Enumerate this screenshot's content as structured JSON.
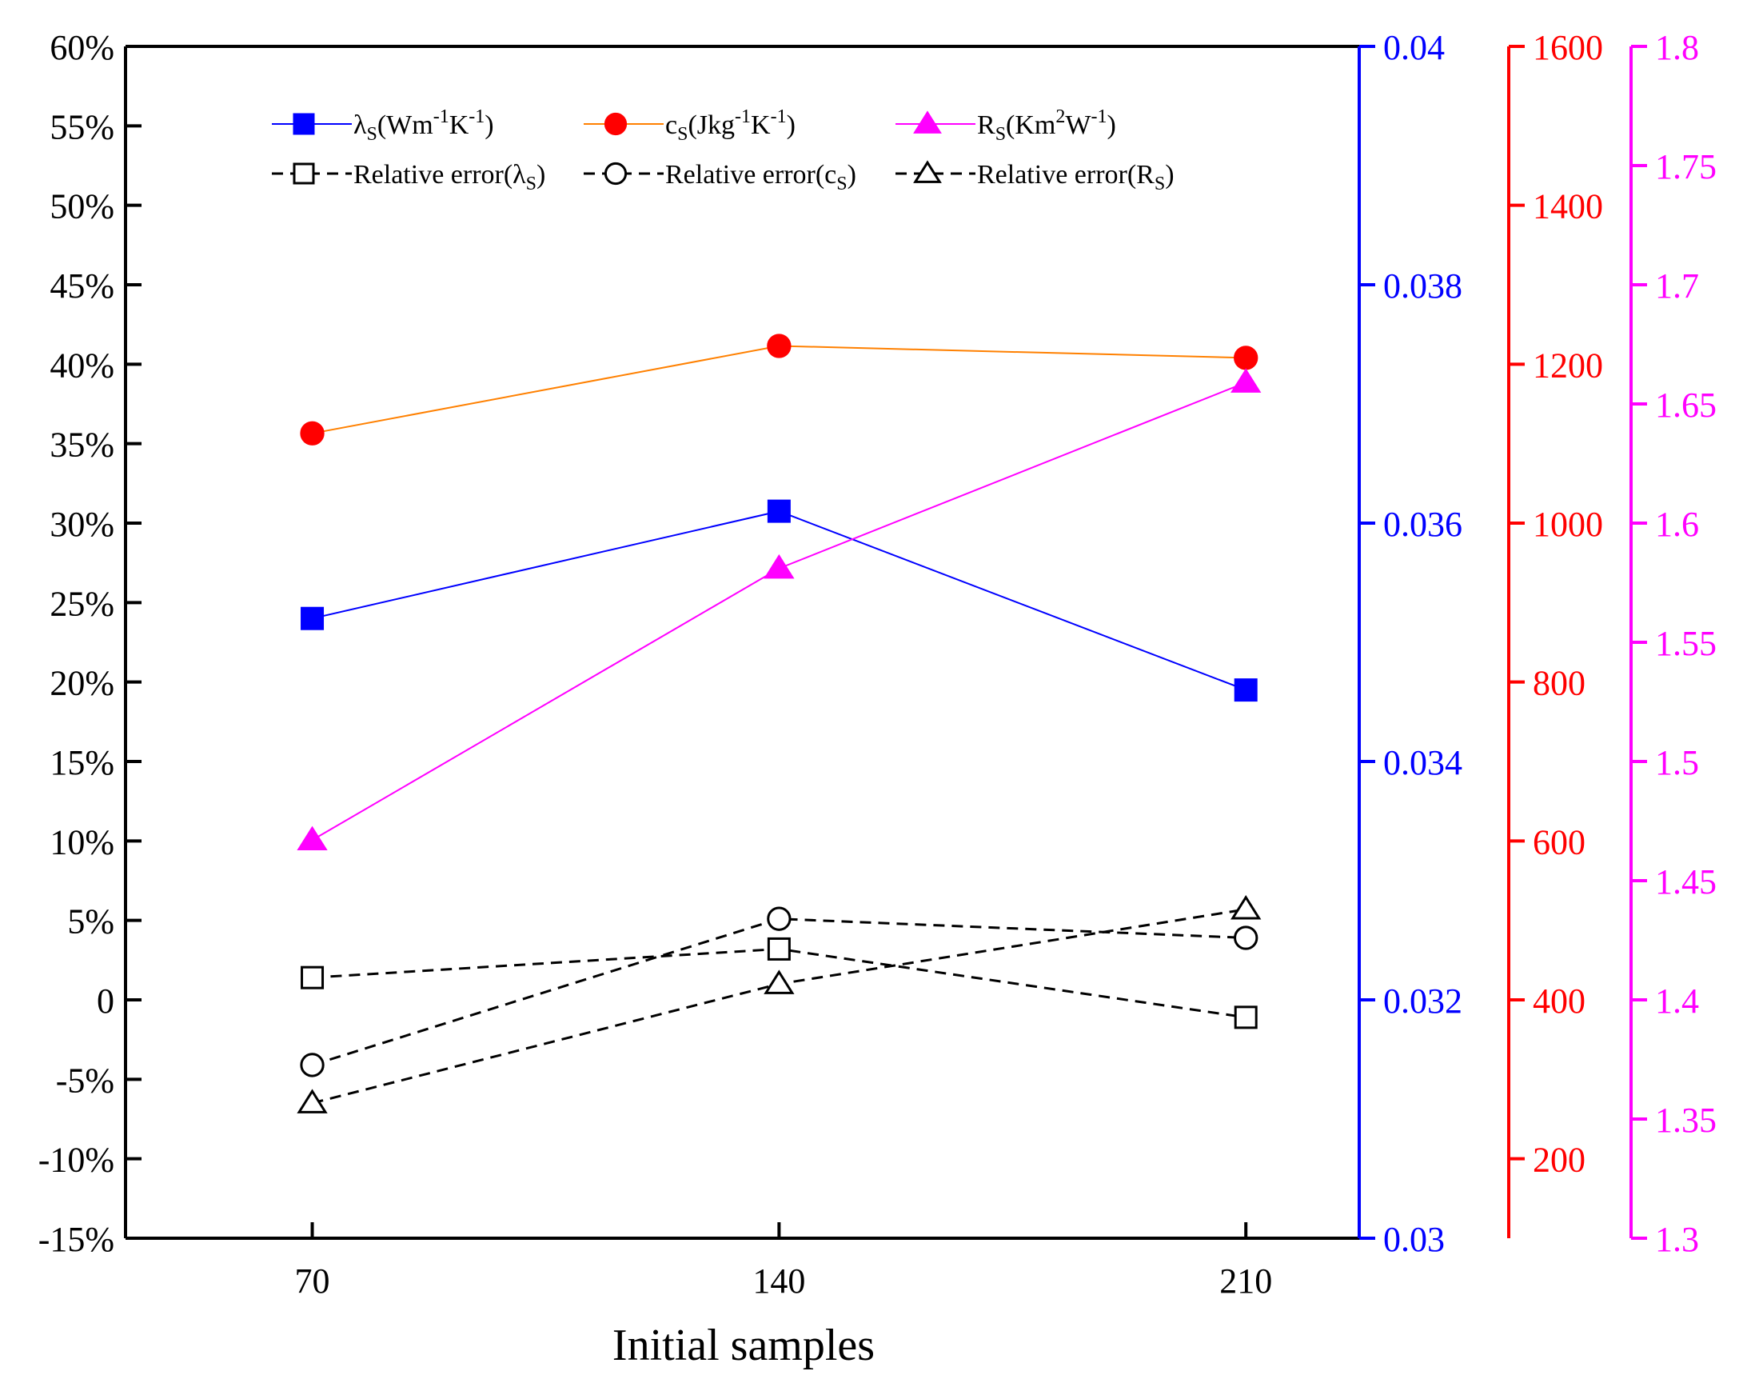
{
  "chart_data": {
    "type": "line",
    "xlabel": "Initial samples",
    "x": [
      70,
      140,
      210
    ],
    "x_ticks": [
      "70",
      "140",
      "210"
    ],
    "axes": {
      "left": {
        "range": [
          -15,
          60
        ],
        "tick_values": [
          -15,
          -10,
          -5,
          0,
          5,
          10,
          15,
          20,
          25,
          30,
          35,
          40,
          45,
          50,
          55,
          60
        ],
        "tick_labels": [
          "-15%",
          "-10%",
          "-5%",
          "0",
          "5%",
          "10%",
          "15%",
          "20%",
          "25%",
          "30%",
          "35%",
          "40%",
          "45%",
          "50%",
          "55%",
          "60%"
        ],
        "color": "#000000"
      },
      "right1": {
        "range": [
          0.03,
          0.04
        ],
        "tick_values": [
          0.03,
          0.032,
          0.034,
          0.036,
          0.038,
          0.04
        ],
        "tick_labels": [
          "0.03",
          "0.032",
          "0.034",
          "0.036",
          "0.038",
          "0.04"
        ],
        "color": "#0000ff"
      },
      "right2": {
        "range": [
          100,
          1600
        ],
        "tick_values": [
          200,
          400,
          600,
          800,
          1000,
          1200,
          1400,
          1600
        ],
        "tick_labels": [
          "200",
          "400",
          "600",
          "800",
          "1000",
          "1200",
          "1400",
          "1600"
        ],
        "color": "#ff0000"
      },
      "right3": {
        "range": [
          1.3,
          1.8
        ],
        "tick_values": [
          1.3,
          1.35,
          1.4,
          1.45,
          1.5,
          1.55,
          1.6,
          1.65,
          1.7,
          1.75,
          1.8
        ],
        "tick_labels": [
          "1.3",
          "1.35",
          "1.4",
          "1.45",
          "1.5",
          "1.55",
          "1.6",
          "1.65",
          "1.7",
          "1.75",
          "1.8"
        ],
        "color": "#ff00ff"
      }
    },
    "series": [
      {
        "sym": "λ",
        "sub": "S",
        "unit": "(Wm",
        "sup1": "-1",
        "mid": "K",
        "sup2": "-1",
        "end": ")",
        "values": [
          0.0352,
          0.0361,
          0.0346
        ],
        "axis": "right1",
        "color": "#0000ff",
        "line": "#0000ff",
        "marker": "square",
        "filled": true,
        "dashed": false
      },
      {
        "sym": "c",
        "sub": "S",
        "unit": "(Jkg",
        "sup1": "-1",
        "mid": "K",
        "sup2": "-1",
        "end": ")",
        "values": [
          1113,
          1223,
          1208
        ],
        "axis": "right2",
        "color": "#ff0000",
        "line": "#ff8000",
        "marker": "circle",
        "filled": true,
        "dashed": false
      },
      {
        "sym": "R",
        "sub": "S",
        "unit": "(Km",
        "sup1": "2",
        "mid": "W",
        "sup2": "-1",
        "end": ")",
        "values": [
          1.467,
          1.581,
          1.659
        ],
        "axis": "right3",
        "color": "#ff00ff",
        "line": "#ff00ff",
        "marker": "triangle",
        "filled": true,
        "dashed": false
      },
      {
        "label": "Relative error(",
        "sym": "λ",
        "sub": "S",
        "end": ")",
        "values": [
          1.4,
          3.2,
          -1.1
        ],
        "axis": "left",
        "color": "#000000",
        "line": "#000000",
        "marker": "square",
        "filled": false,
        "dashed": true
      },
      {
        "label": "Relative error(",
        "sym": "c",
        "sub": "S",
        "end": ")",
        "values": [
          -4.1,
          5.1,
          3.9
        ],
        "axis": "left",
        "color": "#000000",
        "line": "#000000",
        "marker": "circle",
        "filled": false,
        "dashed": true
      },
      {
        "label": "Relative error(",
        "sym": "R",
        "sub": "S",
        "end": ")",
        "values": [
          -6.5,
          1.0,
          5.7
        ],
        "axis": "left",
        "color": "#000000",
        "line": "#000000",
        "marker": "triangle",
        "filled": false,
        "dashed": true
      }
    ],
    "legend_position": "top",
    "grid": false
  }
}
